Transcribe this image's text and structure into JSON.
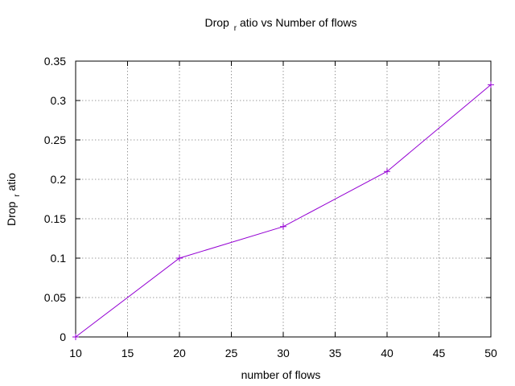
{
  "chart_data": {
    "type": "line",
    "title": {
      "before": "Drop",
      "sub": "r",
      "after": "atio vs Number of flows"
    },
    "xlabel": "number of flows",
    "ylabel": {
      "before": "Drop",
      "sub": "r",
      "after": "atio"
    },
    "xlim": [
      10,
      50
    ],
    "ylim": [
      0,
      0.35
    ],
    "xticks": [
      "10",
      "15",
      "20",
      "25",
      "30",
      "35",
      "40",
      "45",
      "50"
    ],
    "yticks": [
      "0",
      "0.05",
      "0.1",
      "0.15",
      "0.2",
      "0.25",
      "0.3",
      "0.35"
    ],
    "grid": true,
    "series": [
      {
        "color": "#9400d3",
        "marker": "plus",
        "points": [
          {
            "x": 10,
            "y": 0
          },
          {
            "x": 20,
            "y": 0.1
          },
          {
            "x": 30,
            "y": 0.14
          },
          {
            "x": 40,
            "y": 0.21
          },
          {
            "x": 50,
            "y": 0.32
          }
        ]
      }
    ]
  }
}
